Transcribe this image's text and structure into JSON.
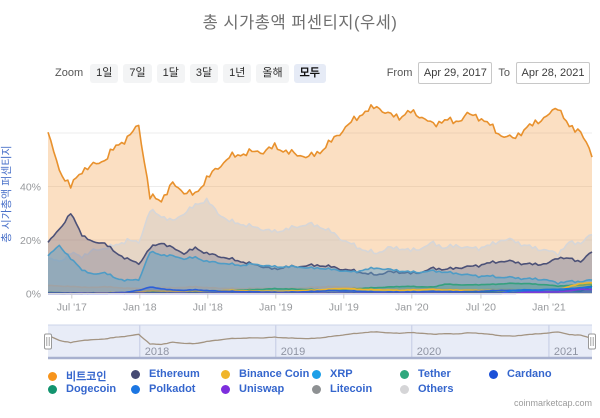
{
  "title": "총 시가총액 퍼센티지(우세)",
  "watermark": "coinmarketcap.com",
  "toolbar": {
    "zoom_label": "Zoom",
    "zoom_buttons": [
      {
        "label": "1일",
        "selected": false
      },
      {
        "label": "7일",
        "selected": false
      },
      {
        "label": "1달",
        "selected": false
      },
      {
        "label": "3달",
        "selected": false
      },
      {
        "label": "1년",
        "selected": false
      },
      {
        "label": "올해",
        "selected": false
      },
      {
        "label": "모두",
        "selected": true
      }
    ],
    "from_label": "From",
    "from_value": "Apr 29, 2017",
    "to_label": "To",
    "to_value": "Apr 28, 2021"
  },
  "colors": {
    "legend_text": "#3566CD",
    "title_text": "#6F6F6F",
    "axis_label": "#97999C",
    "yaxis_title": "#4A71C9",
    "navigator_bg": "#E8ECF7",
    "navigator_line": "#A39482"
  },
  "legend": {
    "items": [
      {
        "label": "비트코인",
        "color": "#F7941C"
      },
      {
        "label": "Ethereum",
        "color": "#474B74"
      },
      {
        "label": "Binance Coin",
        "color": "#F0B52C"
      },
      {
        "label": "XRP",
        "color": "#1D9FE8"
      },
      {
        "label": "Tether",
        "color": "#2FA87D"
      },
      {
        "label": "Cardano",
        "color": "#1B50D8"
      },
      {
        "label": "Dogecoin",
        "color": "#13946F"
      },
      {
        "label": "Polkadot",
        "color": "#1C76E2"
      },
      {
        "label": "Uniswap",
        "color": "#7D2EDD"
      },
      {
        "label": "Litecoin",
        "color": "#8E9193"
      },
      {
        "label": "Others",
        "color": "#D5D5D7"
      }
    ]
  },
  "chart_data": {
    "type": "area",
    "title": "총 시가총액 퍼센티지(우세)",
    "ylabel": "총 시가총액 퍼센티지",
    "ylim": [
      0,
      75
    ],
    "yticks": [
      {
        "label": "0%",
        "v": 0
      },
      {
        "label": "20%",
        "v": 20
      },
      {
        "label": "40%",
        "v": 40
      }
    ],
    "ygrid": [
      20,
      40,
      60
    ],
    "x_start": "2017-04-29",
    "x_end": "2021-04-28",
    "x_interval": "month",
    "xticks": [
      {
        "label": "Jul '17",
        "i": 2.1
      },
      {
        "label": "Jan '18",
        "i": 8.1
      },
      {
        "label": "Jul '18",
        "i": 14.1
      },
      {
        "label": "Jan '19",
        "i": 20.1
      },
      {
        "label": "Jul '19",
        "i": 26.1
      },
      {
        "label": "Jan '20",
        "i": 32.1
      },
      {
        "label": "Jul '20",
        "i": 38.2
      },
      {
        "label": "Jan '21",
        "i": 44.2
      }
    ],
    "navigator": {
      "series": "비트코인",
      "years": [
        {
          "label": "2018",
          "i": 8.1
        },
        {
          "label": "2019",
          "i": 20.1
        },
        {
          "label": "2020",
          "i": 32.1
        },
        {
          "label": "2021",
          "i": 44.2
        }
      ]
    },
    "series": [
      {
        "name": "비트코인",
        "color": "#E8912D",
        "fill": "#F3A44F",
        "fill_opacity": 0.35,
        "jitter": 1.1,
        "values": [
          60,
          46,
          40,
          46,
          48,
          50,
          55,
          58,
          63,
          36,
          35,
          41,
          38,
          37,
          43,
          47,
          51,
          52,
          53,
          53,
          55,
          53,
          52,
          51,
          53,
          57,
          61,
          65,
          68,
          70,
          67,
          66,
          68,
          66,
          63,
          65,
          64,
          67,
          66,
          63,
          59,
          58,
          61,
          64,
          66,
          70,
          62,
          61,
          51
        ]
      },
      {
        "name": "Others",
        "color": "#D6D6D8",
        "fill": "#C9C9CD",
        "fill_opacity": 0.4,
        "jitter": 0.7,
        "values": [
          13,
          12,
          15,
          14,
          16,
          17,
          18,
          20,
          19,
          31,
          29,
          27,
          30,
          33,
          35,
          30,
          27,
          26,
          25,
          24,
          23,
          24,
          25,
          26,
          25,
          23,
          20,
          18,
          16,
          15,
          17,
          17,
          16,
          17,
          19,
          17,
          18,
          17,
          17,
          18,
          20,
          20,
          18,
          17,
          16,
          15,
          19,
          19,
          22
        ]
      },
      {
        "name": "Ethereum",
        "color": "#4C5177",
        "fill": "#5A5E82",
        "fill_opacity": 0.3,
        "jitter": 0.45,
        "values": [
          19,
          24,
          30,
          22,
          19,
          19,
          15,
          13,
          11,
          17,
          19,
          17,
          15,
          17,
          15,
          14,
          13,
          12,
          11,
          10,
          9,
          10,
          10,
          10.5,
          10.5,
          10,
          9,
          8.5,
          7.5,
          7,
          8,
          8,
          7.5,
          8,
          9.5,
          9,
          9.5,
          10,
          10.5,
          11.5,
          12,
          12,
          11,
          11,
          11,
          13.5,
          13,
          12,
          15.5
        ]
      },
      {
        "name": "XRP",
        "color": "#4E9CC6",
        "fill": "#64A2C6",
        "fill_opacity": 0.45,
        "jitter": 0.35,
        "values": [
          14,
          18,
          13,
          9,
          7,
          8,
          5.5,
          5,
          5,
          15.5,
          14.5,
          14,
          13,
          13.5,
          12,
          11.5,
          11,
          10.5,
          11,
          10.5,
          10,
          10,
          10,
          9.5,
          9.5,
          9,
          8.5,
          8,
          9,
          9.5,
          9,
          8.5,
          8,
          8,
          8.5,
          8,
          7.5,
          7,
          6.5,
          6.5,
          6,
          6,
          5.5,
          5.5,
          5,
          4,
          4.5,
          4.5,
          5
        ]
      },
      {
        "name": "Litecoin",
        "color": "#A0A2A4",
        "fill": "#A0A2A4",
        "fill_opacity": 0.35,
        "jitter": 0.12,
        "values": [
          3,
          2.8,
          2.6,
          2.4,
          2.2,
          2.6,
          2.2,
          2,
          1.8,
          2.2,
          2.3,
          2.1,
          2.3,
          2.5,
          2.2,
          2,
          1.9,
          1.8,
          1.9,
          2,
          1.8,
          1.9,
          2,
          2.2,
          2.4,
          2.6,
          2.4,
          2.2,
          2,
          1.9,
          1.8,
          1.7,
          1.7,
          1.8,
          1.9,
          1.7,
          1.6,
          1.5,
          1.5,
          1.6,
          1.7,
          1.6,
          1.5,
          1.4,
          1.3,
          1.2,
          1.3,
          1.2,
          1.1
        ]
      },
      {
        "name": "Tether",
        "color": "#35A07E",
        "fill": "#35A07E",
        "fill_opacity": 0.3,
        "jitter": 0.1,
        "values": [
          0.1,
          0.1,
          0.1,
          0.1,
          0.2,
          0.2,
          0.2,
          0.2,
          0.3,
          0.5,
          0.7,
          0.8,
          0.8,
          0.8,
          0.9,
          1,
          1.1,
          1.3,
          1.4,
          1.6,
          1.8,
          1.7,
          1.6,
          1.5,
          1.4,
          1.3,
          1.5,
          1.8,
          2,
          2.2,
          2.4,
          2.6,
          2.6,
          2.5,
          2.4,
          3.5,
          3.3,
          3.2,
          3.3,
          3.4,
          3.6,
          3.8,
          3.7,
          3.5,
          3.2,
          2.8,
          3,
          3.2,
          3.4
        ]
      },
      {
        "name": "Binance Coin",
        "color": "#EDB52E",
        "fill": "#EDB52E",
        "fill_opacity": 0.3,
        "jitter": 0.08,
        "values": [
          0,
          0,
          0,
          0.1,
          0.2,
          0.2,
          0.3,
          0.3,
          0.6,
          1,
          0.9,
          0.8,
          0.9,
          0.9,
          1,
          1,
          1.2,
          1.1,
          1,
          0.9,
          0.8,
          0.9,
          1,
          1.2,
          1.4,
          1.7,
          1.9,
          1.7,
          1.5,
          1.4,
          1.3,
          1.2,
          1.3,
          1.4,
          1.5,
          1.3,
          1.3,
          1.2,
          1.2,
          1.1,
          1.1,
          1.1,
          1.1,
          1.1,
          1.2,
          1.4,
          2.6,
          3.8,
          4
        ]
      },
      {
        "name": "Cardano",
        "color": "#2B5FD9",
        "fill": "#2B5FD9",
        "fill_opacity": 0.3,
        "jitter": 0.08,
        "values": [
          0,
          0,
          0,
          0,
          0,
          0,
          0.3,
          0.5,
          1.2,
          2.4,
          1.8,
          1.3,
          1.2,
          1.4,
          1.1,
          0.9,
          0.8,
          0.7,
          0.7,
          0.6,
          0.5,
          0.5,
          0.6,
          0.7,
          0.9,
          1.1,
          1,
          0.9,
          0.7,
          0.6,
          0.6,
          0.6,
          0.6,
          0.7,
          0.8,
          0.7,
          0.7,
          0.7,
          0.8,
          1,
          1.2,
          1.1,
          1,
          0.9,
          0.8,
          1,
          1.3,
          2.1,
          2.6
        ]
      },
      {
        "name": "Dogecoin",
        "color": "#168C6E",
        "fill": "#168C6E",
        "fill_opacity": 0.3,
        "jitter": 0.05,
        "values": [
          0.3,
          0.3,
          0.2,
          0.2,
          0.2,
          0.2,
          0.2,
          0.2,
          0.2,
          0.3,
          0.3,
          0.2,
          0.2,
          0.3,
          0.2,
          0.2,
          0.2,
          0.2,
          0.2,
          0.2,
          0.2,
          0.2,
          0.2,
          0.2,
          0.2,
          0.2,
          0.2,
          0.2,
          0.2,
          0.2,
          0.2,
          0.2,
          0.2,
          0.2,
          0.2,
          0.2,
          0.2,
          0.3,
          0.3,
          0.4,
          0.4,
          0.3,
          0.3,
          0.3,
          0.3,
          0.6,
          1.2,
          0.9,
          2.8
        ]
      },
      {
        "name": "Polkadot",
        "color": "#1C74DD",
        "fill": "#1C74DD",
        "fill_opacity": 0.3,
        "jitter": 0.05,
        "values": [
          0,
          0,
          0,
          0,
          0,
          0,
          0,
          0,
          0,
          0,
          0,
          0,
          0,
          0,
          0,
          0,
          0,
          0,
          0,
          0,
          0,
          0,
          0,
          0,
          0,
          0,
          0,
          0,
          0,
          0,
          0,
          0,
          0,
          0,
          0,
          0,
          0,
          0,
          0,
          0,
          0,
          1.2,
          1.4,
          1.3,
          1.5,
          1.6,
          1.8,
          2.2,
          2.4
        ]
      },
      {
        "name": "Uniswap",
        "color": "#7C3BD9",
        "fill": "#7C3BD9",
        "fill_opacity": 0.25,
        "jitter": 0.04,
        "values": [
          0,
          0,
          0,
          0,
          0,
          0,
          0,
          0,
          0,
          0,
          0,
          0,
          0,
          0,
          0,
          0,
          0,
          0,
          0,
          0,
          0,
          0,
          0,
          0,
          0,
          0,
          0,
          0,
          0,
          0,
          0,
          0,
          0,
          0,
          0,
          0,
          0,
          0,
          0,
          0,
          0,
          0,
          0.4,
          0.5,
          0.5,
          0.6,
          1,
          1.6,
          1.5
        ]
      }
    ]
  }
}
